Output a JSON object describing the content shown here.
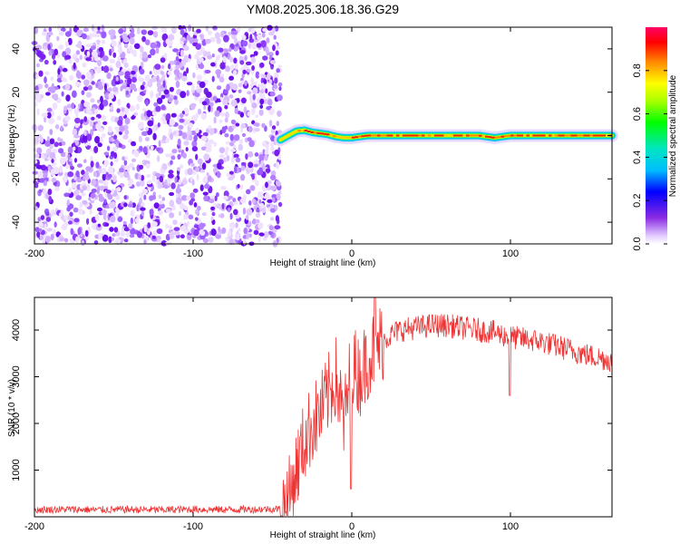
{
  "title": "YM08.2025.306.18.36.G29",
  "chart_data": [
    {
      "type": "heatmap",
      "name": "spectrogram",
      "xlabel": "Height of straight line (km)",
      "ylabel": "Frequency (Hz)",
      "xlim": [
        -200,
        164
      ],
      "ylim": [
        -50,
        50
      ],
      "xticks": [
        -200,
        -100,
        0,
        100
      ],
      "yticks": [
        -40,
        -20,
        0,
        20,
        40
      ],
      "noise_region_x": [
        -200,
        -45
      ],
      "signal_track": {
        "x": [
          -45,
          -40,
          -35,
          -30,
          -25,
          -20,
          -15,
          -10,
          -5,
          0,
          5,
          10,
          20,
          40,
          60,
          80,
          90,
          100,
          120,
          140,
          164
        ],
        "y": [
          -2,
          0,
          2,
          2.5,
          1.5,
          1,
          0.5,
          -0.5,
          -1,
          -1,
          -0.5,
          0,
          0,
          0,
          0,
          0,
          -1,
          0,
          0,
          0,
          0
        ]
      },
      "colorbar": {
        "label": "Normalized spectral amplitude",
        "range": [
          0,
          1
        ],
        "ticks": [
          0.0,
          0.2,
          0.4,
          0.6,
          0.8
        ]
      }
    },
    {
      "type": "line",
      "name": "snr",
      "xlabel": "Height of straight line (km)",
      "ylabel": "SNR (10 * v/v)",
      "xlim": [
        -200,
        164
      ],
      "ylim": [
        0,
        4700
      ],
      "xticks": [
        -200,
        -100,
        0,
        100
      ],
      "yticks": [
        1000,
        2000,
        3000,
        4000
      ],
      "color": "#ee3333",
      "series": [
        {
          "name": "SNR",
          "x": [
            -200,
            -180,
            -160,
            -140,
            -120,
            -100,
            -80,
            -60,
            -45,
            -40,
            -35,
            -30,
            -25,
            -20,
            -15,
            -10,
            -5,
            0,
            5,
            10,
            15,
            20,
            30,
            40,
            50,
            60,
            70,
            80,
            90,
            95,
            100,
            110,
            120,
            130,
            140,
            150,
            164
          ],
          "y": [
            150,
            160,
            150,
            155,
            150,
            160,
            155,
            160,
            170,
            350,
            1000,
            1600,
            2000,
            2200,
            2600,
            3000,
            2000,
            3300,
            3000,
            3400,
            3600,
            3800,
            4000,
            4050,
            4100,
            4100,
            4050,
            4000,
            3950,
            3900,
            3850,
            3800,
            3750,
            3650,
            3550,
            3450,
            3350
          ]
        }
      ]
    }
  ]
}
